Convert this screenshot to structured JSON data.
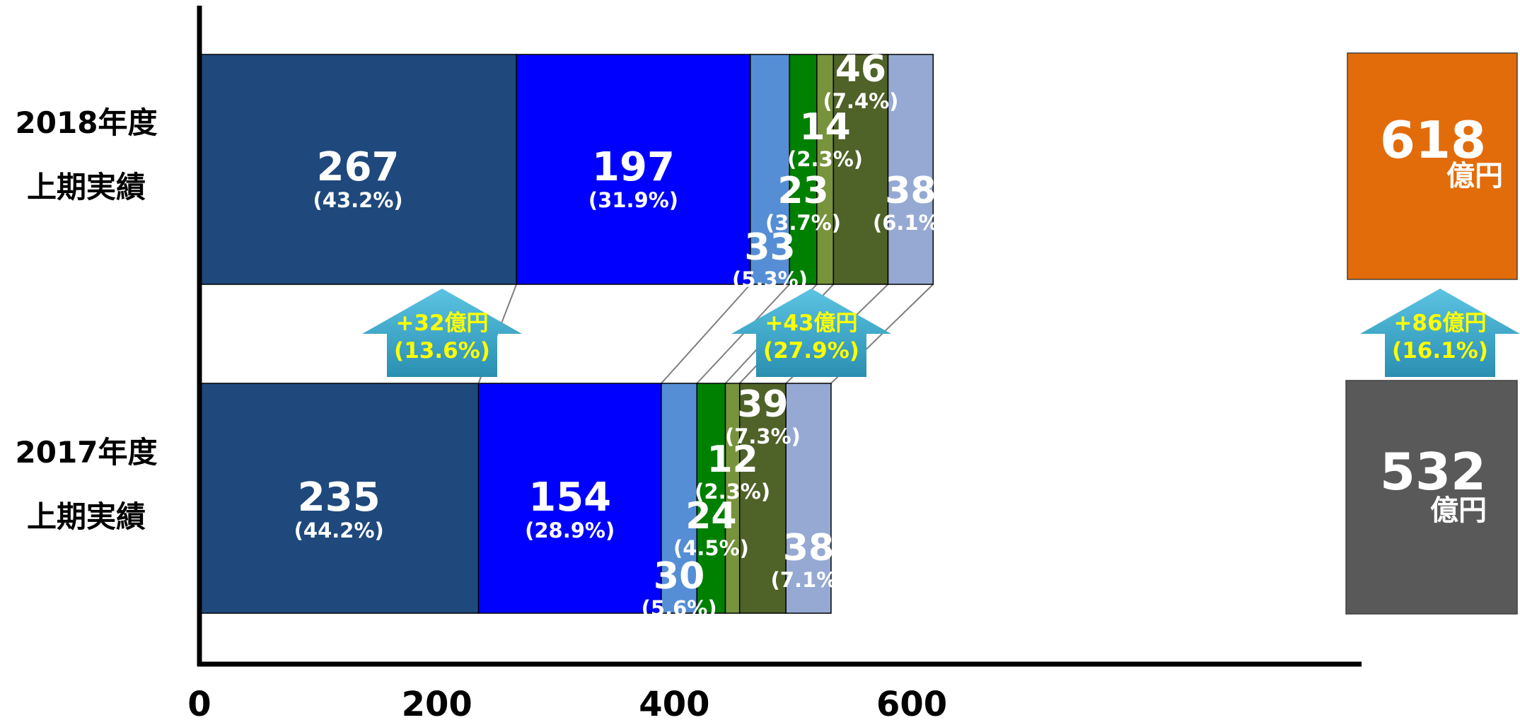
{
  "chart_data": {
    "type": "bar",
    "orientation": "horizontal",
    "stacked": true,
    "categories": [
      "2018年度\n上期実績",
      "2017年度\n上期実績"
    ],
    "category_lines": [
      [
        "2018年度",
        "上期実績"
      ],
      [
        "2017年度",
        "上期実績"
      ]
    ],
    "series": [
      {
        "values": [
          267,
          235
        ],
        "labels": [
          "267",
          "235"
        ],
        "percents": [
          "(43.2%)",
          "(44.2%)"
        ]
      },
      {
        "values": [
          197,
          154
        ],
        "labels": [
          "197",
          "154"
        ],
        "percents": [
          "(31.9%)",
          "(28.9%)"
        ]
      },
      {
        "values": [
          33,
          30
        ],
        "labels": [
          "33",
          "30"
        ],
        "percents": [
          "(5.3%)",
          "(5.6%)"
        ]
      },
      {
        "values": [
          23,
          24
        ],
        "labels": [
          "23",
          "24"
        ],
        "percents": [
          "(3.7%)",
          "(4.5%)"
        ]
      },
      {
        "values": [
          14,
          12
        ],
        "labels": [
          "14",
          "12"
        ],
        "percents": [
          "(2.3%)",
          "(2.3%)"
        ]
      },
      {
        "values": [
          46,
          39
        ],
        "labels": [
          "46",
          "39"
        ],
        "percents": [
          "(7.4%)",
          "(7.3%)"
        ]
      },
      {
        "values": [
          38,
          38
        ],
        "labels": [
          "38",
          "38"
        ],
        "percents": [
          "(6.1%)",
          "(7.1%)"
        ]
      }
    ],
    "colors": [
      "#1f497d",
      "#0000ff",
      "#558ed5",
      "#008000",
      "#77933c",
      "#4f6228",
      "#95a9d3"
    ],
    "x_ticks": [
      "0",
      "200",
      "400",
      "600"
    ],
    "xlim": [
      0,
      650
    ],
    "grid": false,
    "legend": "none",
    "totals": [
      {
        "value": "618",
        "unit": "億円",
        "color": "#e36c0a"
      },
      {
        "value": "532",
        "unit": "億円",
        "color": "#595959"
      }
    ],
    "changes": [
      {
        "line1": "+32億円",
        "line2": "(13.6%)"
      },
      {
        "line1": "+43億円",
        "line2": "(27.9%)"
      },
      {
        "line1": "+86億円",
        "line2": "(16.1%)"
      }
    ]
  }
}
